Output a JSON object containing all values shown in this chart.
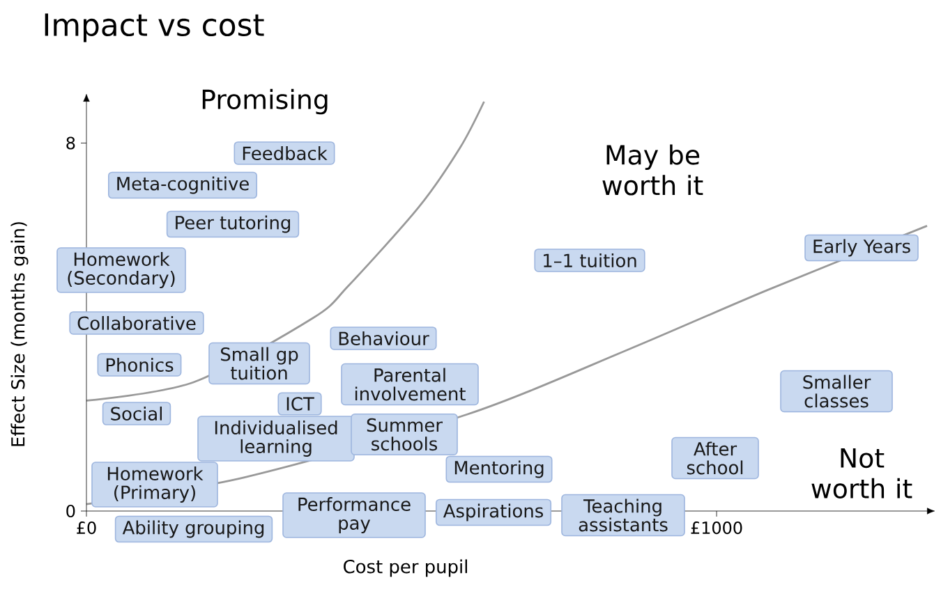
{
  "chart_data": {
    "type": "line",
    "title": "Impact vs cost",
    "xlabel": "Cost per pupil",
    "ylabel": "Effect Size (months gain)",
    "xlim": [
      0,
      1334
    ],
    "ylim": [
      0,
      8.9
    ],
    "xticks": [
      {
        "value": 0,
        "label": "£0"
      },
      {
        "value": 1000,
        "label": "£1000"
      }
    ],
    "yticks": [
      0,
      8
    ],
    "marker": "none",
    "line_style": "solid",
    "series": [
      {
        "color": "#999999",
        "x": [
          0,
          170,
          360,
          416,
          527,
          593,
          631
        ],
        "values": [
          2.4,
          2.8,
          4.2,
          4.9,
          6.6,
          7.9,
          8.9
        ]
      },
      {
        "color": "#999999",
        "x": [
          0,
          250,
          604,
          858,
          1080,
          1334
        ],
        "values": [
          0.15,
          0.73,
          2.1,
          3.5,
          4.8,
          6.2
        ]
      }
    ],
    "annotations": [
      "Promising",
      "May be worth it",
      "Not worth it",
      "Feedback",
      "Meta-cognitive",
      "Peer tutoring",
      "Homework (Secondary)",
      "Collaborative",
      "Phonics",
      "Small gp tuition",
      "Behaviour",
      "Parental involvement",
      "ICT",
      "Social",
      "Individualised learning",
      "Summer schools",
      "Mentoring",
      "Homework (Primary)",
      "Ability grouping",
      "Performance pay",
      "Aspirations",
      "Teaching assistants",
      "After school",
      "1–1 tuition",
      "Early Years",
      "Smaller classes"
    ]
  }
}
